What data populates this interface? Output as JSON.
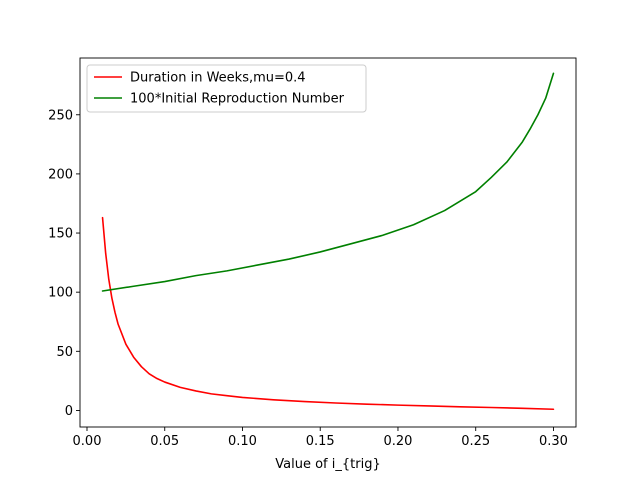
{
  "chart_data": {
    "type": "line",
    "title": "",
    "xlabel": "Value of i_{trig}",
    "ylabel": "",
    "xlim": [
      -0.0045,
      0.3145
    ],
    "ylim": [
      -14,
      298
    ],
    "xticks": [
      0.0,
      0.05,
      0.1,
      0.15,
      0.2,
      0.25,
      0.3
    ],
    "xtick_labels": [
      "0.00",
      "0.05",
      "0.10",
      "0.15",
      "0.20",
      "0.25",
      "0.30"
    ],
    "yticks": [
      0,
      50,
      100,
      150,
      200,
      250
    ],
    "ytick_labels": [
      "0",
      "50",
      "100",
      "150",
      "200",
      "250"
    ],
    "grid": false,
    "legend_position": "upper-left",
    "series": [
      {
        "name": "Duration in Weeks,mu=0.4",
        "color": "#ff0000",
        "x": [
          0.01,
          0.012,
          0.014,
          0.016,
          0.018,
          0.02,
          0.025,
          0.03,
          0.035,
          0.04,
          0.045,
          0.05,
          0.06,
          0.07,
          0.08,
          0.09,
          0.1,
          0.12,
          0.14,
          0.16,
          0.18,
          0.2,
          0.22,
          0.24,
          0.26,
          0.28,
          0.3
        ],
        "y": [
          163,
          133,
          111,
          95,
          83,
          73,
          56,
          45,
          37,
          31,
          27,
          24,
          19.5,
          16.5,
          14,
          12.5,
          11,
          9,
          7.5,
          6.3,
          5.3,
          4.5,
          3.8,
          3.1,
          2.5,
          1.8,
          1
        ]
      },
      {
        "name": "100*Initial Reproduction Number",
        "color": "#008000",
        "x": [
          0.01,
          0.03,
          0.05,
          0.07,
          0.09,
          0.11,
          0.13,
          0.15,
          0.17,
          0.19,
          0.21,
          0.23,
          0.25,
          0.26,
          0.27,
          0.28,
          0.285,
          0.29,
          0.295,
          0.3
        ],
        "y": [
          101,
          105,
          109,
          114,
          118,
          123,
          128,
          134,
          141,
          148,
          157,
          169,
          185,
          197,
          210,
          227,
          238,
          250,
          264,
          285
        ]
      }
    ]
  }
}
